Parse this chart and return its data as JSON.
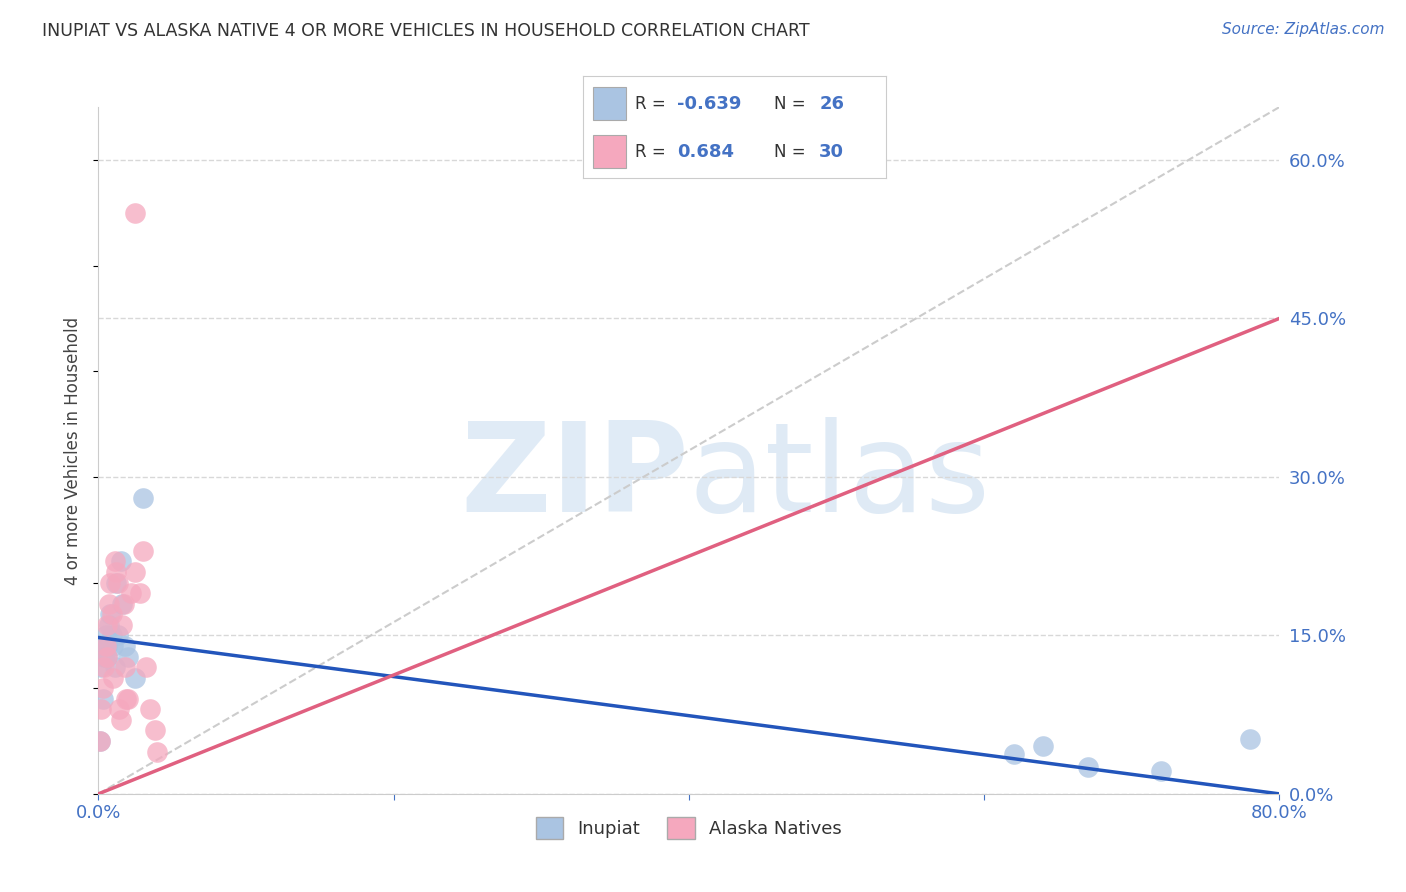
{
  "title": "INUPIAT VS ALASKA NATIVE 4 OR MORE VEHICLES IN HOUSEHOLD CORRELATION CHART",
  "source": "Source: ZipAtlas.com",
  "ylabel": "4 or more Vehicles in Household",
  "xmin": 0.0,
  "xmax": 0.8,
  "ymin": 0.0,
  "ymax": 0.65,
  "yticks": [
    0.0,
    0.15,
    0.3,
    0.45,
    0.6
  ],
  "xticks": [
    0.0,
    0.2,
    0.4,
    0.6,
    0.8
  ],
  "inupiat_color": "#aac4e2",
  "alaska_color": "#f5a8be",
  "inupiat_line_color": "#2255bb",
  "alaska_line_color": "#e06080",
  "ref_line_color": "#cccccc",
  "background_color": "#ffffff",
  "grid_color": "#d8d8d8",
  "inupiat_x": [
    0.001,
    0.002,
    0.003,
    0.004,
    0.004,
    0.005,
    0.006,
    0.006,
    0.007,
    0.008,
    0.009,
    0.01,
    0.011,
    0.012,
    0.013,
    0.015,
    0.016,
    0.018,
    0.02,
    0.025,
    0.03,
    0.62,
    0.64,
    0.67,
    0.72,
    0.78
  ],
  "inupiat_y": [
    0.05,
    0.12,
    0.09,
    0.14,
    0.13,
    0.15,
    0.14,
    0.13,
    0.16,
    0.17,
    0.15,
    0.14,
    0.12,
    0.2,
    0.15,
    0.22,
    0.18,
    0.14,
    0.13,
    0.11,
    0.28,
    0.038,
    0.045,
    0.025,
    0.022,
    0.052
  ],
  "alaska_x": [
    0.001,
    0.002,
    0.003,
    0.004,
    0.005,
    0.006,
    0.006,
    0.007,
    0.008,
    0.009,
    0.01,
    0.011,
    0.012,
    0.013,
    0.014,
    0.015,
    0.016,
    0.017,
    0.018,
    0.019,
    0.02,
    0.022,
    0.025,
    0.028,
    0.03,
    0.032,
    0.035,
    0.038,
    0.04,
    0.025
  ],
  "alaska_y": [
    0.05,
    0.08,
    0.1,
    0.12,
    0.14,
    0.13,
    0.16,
    0.18,
    0.2,
    0.17,
    0.11,
    0.22,
    0.21,
    0.2,
    0.08,
    0.07,
    0.16,
    0.18,
    0.12,
    0.09,
    0.09,
    0.19,
    0.21,
    0.19,
    0.23,
    0.12,
    0.08,
    0.06,
    0.04,
    0.55
  ],
  "inupiat_trend": [
    0.0,
    0.8,
    0.148,
    0.0
  ],
  "alaska_trend": [
    0.0,
    0.8,
    0.0,
    0.45
  ],
  "ref_line": [
    0.0,
    0.8,
    0.0,
    0.65
  ],
  "watermark_zip": "ZIP",
  "watermark_atlas": "atlas",
  "legend_blue_patch": "#aac4e2",
  "legend_pink_patch": "#f5a8be",
  "legend_border": "#cccccc",
  "bottom_legend_labels": [
    "Inupiat",
    "Alaska Natives"
  ]
}
